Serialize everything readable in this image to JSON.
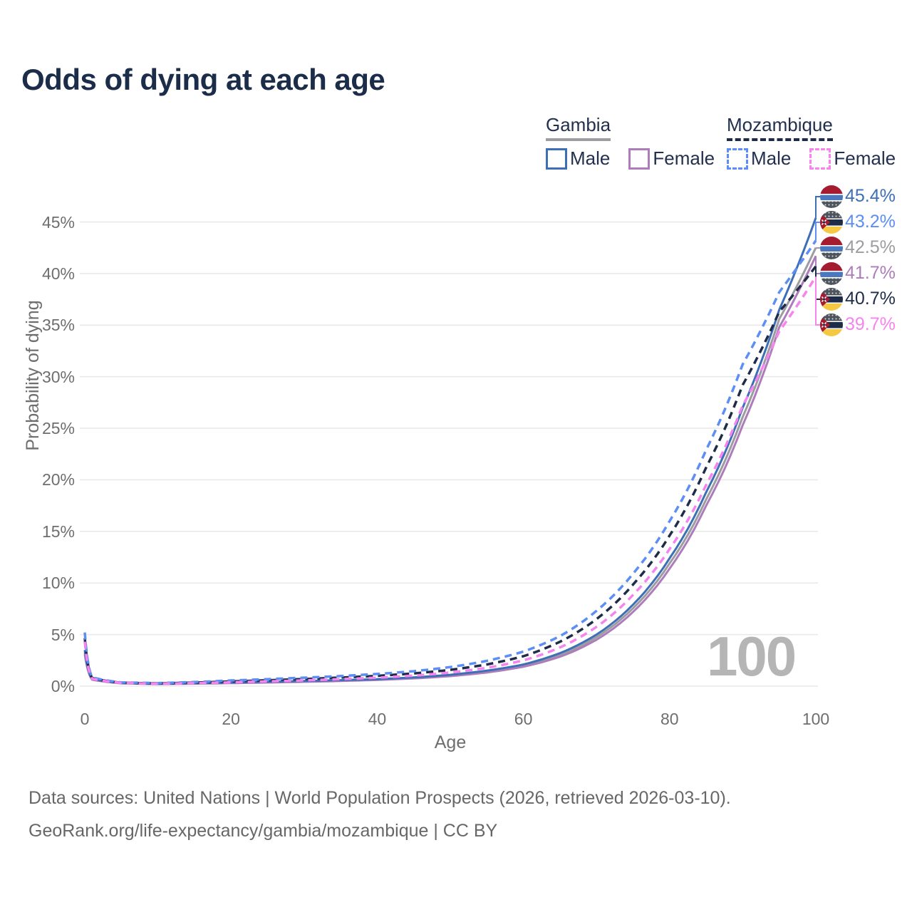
{
  "title": "Odds of dying at each age",
  "watermark": "100",
  "legend": {
    "groups": [
      {
        "label": "Gambia",
        "underline_color": "#9c9ca1",
        "underline_style": "solid",
        "items": [
          {
            "label": "Male",
            "color": "#3d6fb6",
            "dashed": false
          },
          {
            "label": "Female",
            "color": "#ad7cba",
            "dashed": false
          }
        ]
      },
      {
        "label": "Mozambique",
        "underline_color": "#1f2c48",
        "underline_style": "dashed",
        "items": [
          {
            "label": "Male",
            "color": "#5d8ef5",
            "dashed": true
          },
          {
            "label": "Female",
            "color": "#f584ee",
            "dashed": true
          }
        ]
      }
    ]
  },
  "axes": {
    "y_title": "Probability of dying",
    "x_title": "Age",
    "y_ticks": [
      "0%",
      "5%",
      "10%",
      "15%",
      "20%",
      "25%",
      "30%",
      "35%",
      "40%",
      "45%"
    ],
    "x_ticks": [
      "0",
      "20",
      "40",
      "60",
      "80",
      "100"
    ]
  },
  "footer": {
    "line1": "Data sources: United Nations | World Population Prospects (2026, retrieved 2026-03-10).",
    "line2": "GeoRank.org/life-expectancy/gambia/mozambique | CC BY"
  },
  "colors": {
    "title_text": "#1c2d49",
    "legend_text": "#22304d",
    "axis_text": "#6e6e6e",
    "gridline": "#e9e9e9",
    "watermark": "#b5b5b5",
    "footer_text": "#676767"
  },
  "chart_data": {
    "type": "line",
    "title": "Odds of dying at each age",
    "xlabel": "Age",
    "ylabel": "Probability of dying",
    "xlim": [
      0,
      100
    ],
    "ylim_percent": [
      0,
      47
    ],
    "grid": "horizontal-only",
    "legend_position": "top-right",
    "x": [
      0,
      1,
      5,
      10,
      15,
      20,
      25,
      30,
      35,
      40,
      45,
      50,
      55,
      60,
      65,
      70,
      75,
      80,
      85,
      90,
      95,
      100
    ],
    "series": [
      {
        "id": "gambia-male",
        "country": "Gambia",
        "sex": "Male",
        "name": "Gambia — Male",
        "color": "#3d6fb6",
        "dashed": false,
        "flag": "gambia",
        "end_label": "45.4%",
        "end_value": 45.4,
        "values_percent": [
          3.5,
          0.7,
          0.3,
          0.22,
          0.28,
          0.35,
          0.42,
          0.5,
          0.58,
          0.68,
          0.85,
          1.1,
          1.5,
          2.1,
          3.2,
          5.0,
          7.9,
          12.4,
          18.8,
          27.0,
          36.5,
          45.4
        ]
      },
      {
        "id": "gambia-female",
        "country": "Gambia",
        "sex": "Female",
        "name": "Gambia — Female",
        "color": "#ad7cba",
        "dashed": false,
        "flag": "gambia",
        "end_label": "41.7%",
        "end_value": 41.7,
        "values_percent": [
          3.1,
          0.62,
          0.27,
          0.2,
          0.24,
          0.29,
          0.35,
          0.42,
          0.5,
          0.6,
          0.75,
          0.97,
          1.32,
          1.88,
          2.85,
          4.5,
          7.2,
          11.4,
          17.5,
          25.3,
          34.8,
          41.7
        ]
      },
      {
        "id": "gambia-both",
        "country": "Gambia",
        "sex": "Both sexes",
        "name": "Gambia — Both sexes",
        "color": "#9c9ca1",
        "dashed": false,
        "flag": "gambia",
        "end_label": "42.5%",
        "end_value": 42.5,
        "values_percent": [
          3.3,
          0.66,
          0.28,
          0.21,
          0.26,
          0.32,
          0.39,
          0.46,
          0.54,
          0.64,
          0.8,
          1.04,
          1.42,
          2.0,
          3.0,
          4.75,
          7.55,
          11.9,
          18.1,
          26.1,
          35.6,
          42.5
        ]
      },
      {
        "id": "mozambique-male",
        "country": "Mozambique",
        "sex": "Male",
        "name": "Mozambique — Male",
        "color": "#5d8ef5",
        "dashed": true,
        "flag": "mozambique",
        "end_label": "43.2%",
        "end_value": 43.2,
        "values_percent": [
          5.2,
          0.85,
          0.36,
          0.3,
          0.4,
          0.55,
          0.68,
          0.82,
          0.98,
          1.18,
          1.45,
          1.85,
          2.45,
          3.35,
          4.85,
          7.3,
          10.9,
          16.0,
          22.9,
          31.2,
          38.2,
          43.2
        ]
      },
      {
        "id": "mozambique-female",
        "country": "Mozambique",
        "sex": "Female",
        "name": "Mozambique — Female",
        "color": "#f584ee",
        "dashed": true,
        "flag": "mozambique",
        "end_label": "39.7%",
        "end_value": 39.7,
        "values_percent": [
          4.3,
          0.72,
          0.31,
          0.24,
          0.29,
          0.37,
          0.46,
          0.56,
          0.68,
          0.82,
          1.02,
          1.32,
          1.78,
          2.5,
          3.75,
          5.75,
          8.85,
          13.3,
          19.5,
          27.2,
          34.4,
          39.7
        ]
      },
      {
        "id": "mozambique-both",
        "country": "Mozambique",
        "sex": "Both sexes",
        "name": "Mozambique — Both sexes",
        "color": "#1f2c48",
        "dashed": true,
        "flag": "mozambique",
        "end_label": "40.7%",
        "end_value": 40.7,
        "values_percent": [
          4.65,
          0.78,
          0.33,
          0.27,
          0.34,
          0.46,
          0.57,
          0.69,
          0.83,
          1.0,
          1.23,
          1.58,
          2.1,
          2.9,
          4.3,
          6.5,
          9.85,
          14.6,
          21.2,
          29.2,
          36.3,
          40.7
        ]
      }
    ]
  }
}
